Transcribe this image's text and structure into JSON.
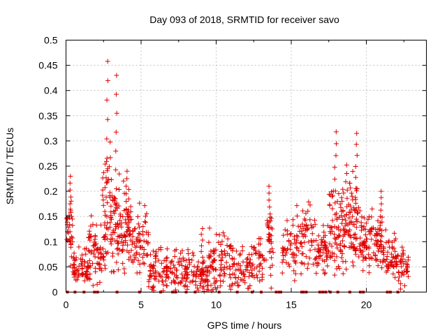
{
  "chart_data": {
    "type": "scatter",
    "title": "Day 093 of 2018, SRMTID for receiver savo",
    "xlabel": "GPS time / hours",
    "ylabel": "SRMTID / TECUs",
    "xlim": [
      0,
      24
    ],
    "ylim": [
      0,
      0.5
    ],
    "xticks": [
      0,
      5,
      10,
      15,
      20
    ],
    "yticks": [
      0,
      0.05,
      0.1,
      0.15,
      0.2,
      0.25,
      0.3,
      0.35,
      0.4,
      0.45,
      0.5
    ],
    "ytick_labels": [
      "0",
      "0.05",
      "0.1",
      "0.15",
      "0.2",
      "0.25",
      "0.3",
      "0.35",
      "0.4",
      "0.45",
      "0.5"
    ],
    "grid": true,
    "marker": "+",
    "color": "#e00000",
    "series_name": "SRMTID",
    "clusters": [
      {
        "t0": 0.05,
        "t1": 0.45,
        "n": 30,
        "base": 0.12,
        "spread": 0.06,
        "peak": 0.23
      },
      {
        "t0": 0.45,
        "t1": 0.95,
        "n": 30,
        "base": 0.045,
        "spread": 0.035
      },
      {
        "t0": 0.95,
        "t1": 1.5,
        "n": 35,
        "base": 0.05,
        "spread": 0.04
      },
      {
        "t0": 1.5,
        "t1": 2.4,
        "n": 60,
        "base": 0.08,
        "spread": 0.06
      },
      {
        "t0": 2.4,
        "t1": 3.0,
        "n": 55,
        "base": 0.15,
        "spread": 0.13,
        "peak": 0.458
      },
      {
        "t0": 3.0,
        "t1": 3.6,
        "n": 50,
        "base": 0.13,
        "spread": 0.1,
        "peak": 0.43
      },
      {
        "t0": 3.6,
        "t1": 4.4,
        "n": 60,
        "base": 0.12,
        "spread": 0.08,
        "peak": 0.24
      },
      {
        "t0": 4.4,
        "t1": 5.5,
        "n": 60,
        "base": 0.1,
        "spread": 0.06
      },
      {
        "t0": 5.5,
        "t1": 7.0,
        "n": 80,
        "base": 0.045,
        "spread": 0.04
      },
      {
        "t0": 7.0,
        "t1": 8.5,
        "n": 70,
        "base": 0.04,
        "spread": 0.04
      },
      {
        "t0": 8.5,
        "t1": 9.5,
        "n": 60,
        "base": 0.035,
        "spread": 0.04,
        "peak": 0.126
      },
      {
        "t0": 9.5,
        "t1": 11.0,
        "n": 85,
        "base": 0.06,
        "spread": 0.05
      },
      {
        "t0": 11.0,
        "t1": 12.5,
        "n": 70,
        "base": 0.045,
        "spread": 0.04
      },
      {
        "t0": 12.5,
        "t1": 13.3,
        "n": 35,
        "base": 0.06,
        "spread": 0.05
      },
      {
        "t0": 13.3,
        "t1": 13.8,
        "n": 30,
        "base": 0.1,
        "spread": 0.08,
        "peak": 0.21
      },
      {
        "t0": 14.4,
        "t1": 15.3,
        "n": 45,
        "base": 0.08,
        "spread": 0.05
      },
      {
        "t0": 15.3,
        "t1": 16.6,
        "n": 65,
        "base": 0.11,
        "spread": 0.06
      },
      {
        "t0": 16.6,
        "t1": 17.5,
        "n": 55,
        "base": 0.08,
        "spread": 0.05
      },
      {
        "t0": 17.5,
        "t1": 18.3,
        "n": 55,
        "base": 0.13,
        "spread": 0.09,
        "peak": 0.318
      },
      {
        "t0": 18.3,
        "t1": 19.0,
        "n": 55,
        "base": 0.12,
        "spread": 0.08,
        "peak": 0.252
      },
      {
        "t0": 19.0,
        "t1": 19.6,
        "n": 45,
        "base": 0.14,
        "spread": 0.09,
        "peak": 0.315
      },
      {
        "t0": 19.6,
        "t1": 20.5,
        "n": 60,
        "base": 0.1,
        "spread": 0.06
      },
      {
        "t0": 20.5,
        "t1": 21.3,
        "n": 50,
        "base": 0.1,
        "spread": 0.06,
        "peak": 0.2
      },
      {
        "t0": 21.3,
        "t1": 22.0,
        "n": 45,
        "base": 0.07,
        "spread": 0.05
      },
      {
        "t0": 22.0,
        "t1": 22.8,
        "n": 45,
        "base": 0.05,
        "spread": 0.04
      }
    ],
    "zero_markers": [
      0.1,
      0.6,
      1.2,
      1.9,
      2.1,
      3.4,
      4.9,
      6.3,
      7.1,
      7.3,
      8.0,
      8.6,
      10.2,
      11.4,
      12.4,
      13.0,
      14.0,
      14.2,
      14.3,
      15.7,
      15.8,
      16.0,
      16.9,
      17.1,
      17.3,
      17.6,
      18.1,
      18.9,
      19.6,
      19.8,
      21.4,
      21.6,
      22.1
    ]
  }
}
